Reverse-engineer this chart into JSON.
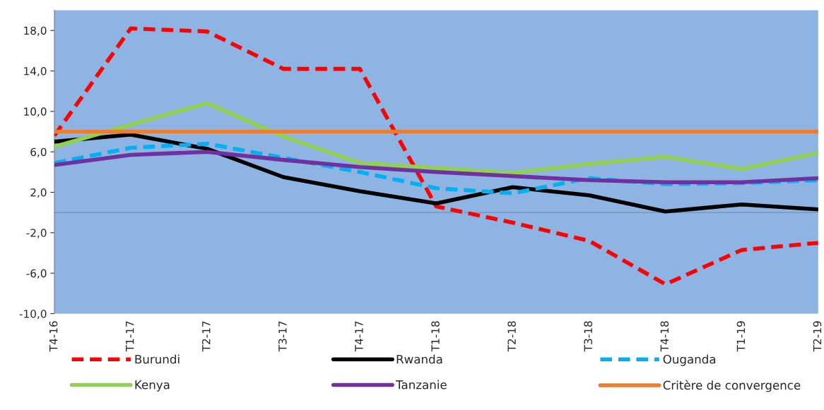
{
  "chart_data": {
    "type": "line",
    "categories": [
      "T4-16",
      "T1-17",
      "T2-17",
      "T3-17",
      "T4-17",
      "T1-18",
      "T2-18",
      "T3-18",
      "T4-18",
      "T1-19",
      "T2-19"
    ],
    "series": [
      {
        "name": "Burundi",
        "color": "#ff0000",
        "line_style": "dashed",
        "values": [
          7.6,
          18.2,
          17.9,
          14.2,
          14.2,
          0.6,
          -1.0,
          -2.8,
          -7.1,
          -3.7,
          -3.0
        ]
      },
      {
        "name": "Rwanda",
        "color": "#000000",
        "line_style": "solid",
        "values": [
          7.0,
          7.7,
          6.3,
          3.5,
          2.1,
          0.9,
          2.5,
          1.7,
          0.1,
          0.8,
          0.3
        ]
      },
      {
        "name": "Ouganda",
        "color": "#00b0f0",
        "line_style": "dashed",
        "values": [
          4.9,
          6.4,
          6.8,
          5.4,
          4.0,
          2.4,
          1.9,
          3.4,
          2.8,
          2.9,
          3.2
        ]
      },
      {
        "name": "Kenya",
        "color": "#92d050",
        "line_style": "solid",
        "values": [
          6.5,
          8.7,
          10.8,
          7.5,
          4.9,
          4.4,
          3.9,
          4.8,
          5.5,
          4.3,
          5.9
        ]
      },
      {
        "name": "Tanzanie",
        "color": "#7030a0",
        "line_style": "solid",
        "values": [
          4.7,
          5.7,
          6.0,
          5.2,
          4.5,
          4.0,
          3.6,
          3.2,
          3.0,
          3.0,
          3.4
        ]
      },
      {
        "name": "Critère de convergence",
        "color": "#ed7d31",
        "line_style": "solid",
        "values": [
          8.0,
          8.0,
          8.0,
          8.0,
          8.0,
          8.0,
          8.0,
          8.0,
          8.0,
          8.0,
          8.0
        ]
      }
    ],
    "ylim": [
      -10,
      20
    ],
    "yticks": [
      {
        "value": -10,
        "label": "-10,0"
      },
      {
        "value": -6,
        "label": "-6,0"
      },
      {
        "value": -2,
        "label": "-2,0"
      },
      {
        "value": 2,
        "label": "2,0"
      },
      {
        "value": 6,
        "label": "6,0"
      },
      {
        "value": 10,
        "label": "10,0"
      },
      {
        "value": 14,
        "label": "14,0"
      },
      {
        "value": 18,
        "label": "18,0"
      }
    ],
    "ref_lines": [
      {
        "axis": "y",
        "value": 0,
        "color": "#7f8fa6"
      }
    ],
    "grid": false,
    "legend": "bottom"
  }
}
